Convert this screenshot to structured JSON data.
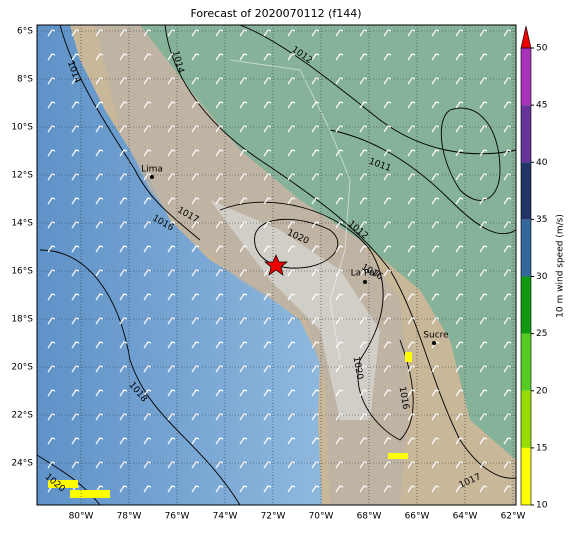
{
  "title": "Forecast of 2020070112 (f144)",
  "map": {
    "lon_ticks": [
      {
        "value": -80,
        "label": "80°W"
      },
      {
        "value": -78,
        "label": "78°W"
      },
      {
        "value": -76,
        "label": "76°W"
      },
      {
        "value": -74,
        "label": "74°W"
      },
      {
        "value": -72,
        "label": "72°W"
      },
      {
        "value": -70,
        "label": "70°W"
      },
      {
        "value": -68,
        "label": "68°W"
      },
      {
        "value": -66,
        "label": "66°W"
      },
      {
        "value": -64,
        "label": "64°W"
      },
      {
        "value": -62,
        "label": "62°W"
      }
    ],
    "lat_ticks": [
      {
        "value": -6,
        "label": "6°S"
      },
      {
        "value": -8,
        "label": "8°S"
      },
      {
        "value": -10,
        "label": "10°S"
      },
      {
        "value": -12,
        "label": "12°S"
      },
      {
        "value": -14,
        "label": "14°S"
      },
      {
        "value": -16,
        "label": "16°S"
      },
      {
        "value": -18,
        "label": "18°S"
      },
      {
        "value": -20,
        "label": "20°S"
      },
      {
        "value": -22,
        "label": "22°S"
      },
      {
        "value": -24,
        "label": "24°S"
      }
    ],
    "cities": [
      "Lima",
      "La Paz",
      "Sucre"
    ],
    "isobar_labels": [
      1014,
      1014,
      1012,
      1011,
      1017,
      1016,
      1020,
      1012,
      1016,
      1020,
      1018,
      1016,
      1017,
      1020
    ]
  },
  "colorbar": {
    "label": "10 m wind speed (m/s)",
    "ticks": [
      10,
      15,
      20,
      25,
      30,
      35,
      40,
      45,
      50
    ],
    "colors": [
      "#ffff00",
      "#99dd00",
      "#55cc22",
      "#119911",
      "#336699",
      "#223366",
      "#663399",
      "#aa33bb"
    ]
  }
}
